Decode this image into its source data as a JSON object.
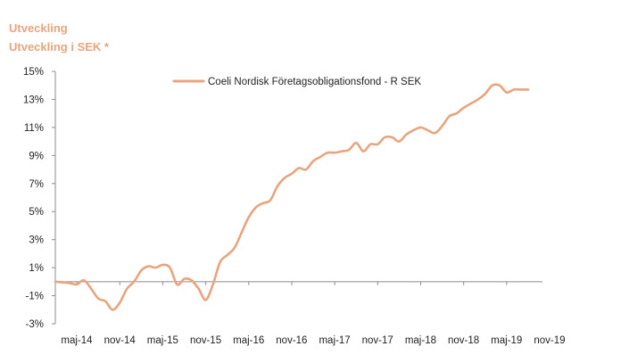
{
  "header": {
    "title": "Utveckling",
    "subtitle": "Utveckling i SEK *"
  },
  "colors": {
    "series": "#e8a47c",
    "axis": "#8c8c8c",
    "heading": "#e8a47c"
  },
  "chart_data": {
    "type": "line",
    "title": "Utveckling i SEK *",
    "xlabel": "",
    "ylabel": "",
    "ylim": [
      -3,
      15
    ],
    "grid": false,
    "legend_position": "top-center",
    "y_ticks": [
      "15%",
      "13%",
      "11%",
      "9%",
      "7%",
      "5%",
      "3%",
      "1%",
      "-1%",
      "-3%"
    ],
    "y_tick_values": [
      15,
      13,
      11,
      9,
      7,
      5,
      3,
      1,
      -1,
      -3
    ],
    "x_ticks": [
      "maj-14",
      "nov-14",
      "maj-15",
      "nov-15",
      "maj-16",
      "nov-16",
      "maj-17",
      "nov-17",
      "maj-18",
      "nov-18",
      "maj-19",
      "nov-19"
    ],
    "x_range_months": [
      0,
      68
    ],
    "series": [
      {
        "name": "Coeli Nordisk Företagsobligationsfond - R SEK",
        "x": [
          0,
          2,
          3,
          4,
          5,
          6,
          7,
          8,
          9,
          10,
          11,
          12,
          13,
          14,
          15,
          16,
          17,
          18,
          19,
          20,
          21,
          22,
          23,
          24,
          25,
          26,
          27,
          28,
          29,
          30,
          31,
          32,
          33,
          34,
          35,
          36,
          37,
          38,
          39,
          40,
          41,
          42,
          43,
          44,
          45,
          46,
          47,
          48,
          49,
          50,
          51,
          52,
          53,
          54,
          55,
          56,
          57,
          58,
          59,
          60,
          61,
          62,
          63,
          64,
          65,
          66
        ],
        "values": [
          0.0,
          -0.1,
          -0.2,
          0.1,
          -0.5,
          -1.2,
          -1.4,
          -2.0,
          -1.5,
          -0.5,
          0.0,
          0.8,
          1.1,
          1.0,
          1.2,
          1.0,
          -0.2,
          0.2,
          0.1,
          -0.5,
          -1.3,
          -0.2,
          1.4,
          1.9,
          2.4,
          3.5,
          4.6,
          5.3,
          5.6,
          5.8,
          6.8,
          7.4,
          7.7,
          8.1,
          8.0,
          8.6,
          8.9,
          9.2,
          9.2,
          9.3,
          9.4,
          9.9,
          9.3,
          9.8,
          9.8,
          10.3,
          10.3,
          10.0,
          10.5,
          10.8,
          11.0,
          10.8,
          10.6,
          11.1,
          11.8,
          12.0,
          12.4,
          12.7,
          13.0,
          13.4,
          14.0,
          14.0,
          13.5,
          13.7,
          13.7,
          13.7
        ]
      }
    ]
  }
}
